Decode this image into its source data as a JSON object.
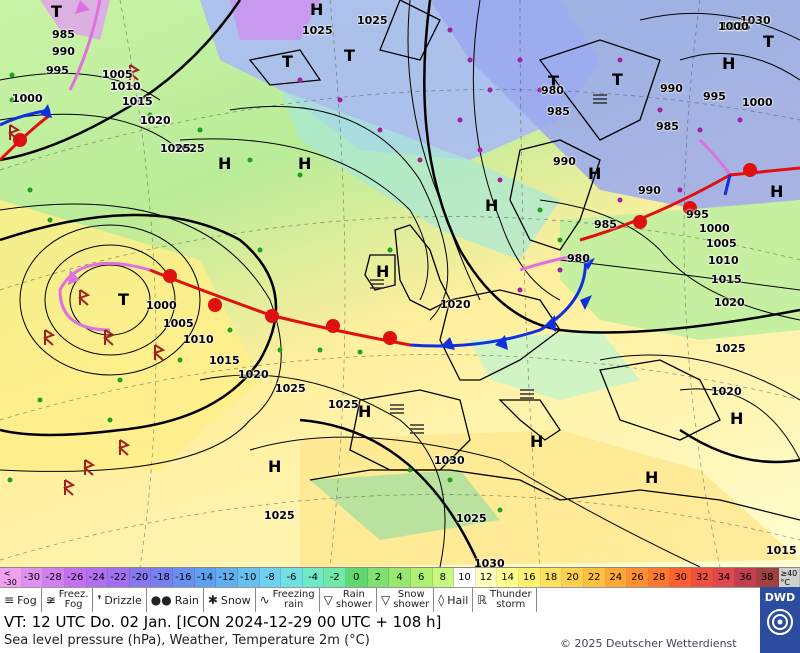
{
  "map": {
    "highs": [
      "H",
      "H",
      "H",
      "H",
      "H",
      "H",
      "H",
      "H",
      "H",
      "H",
      "H",
      "H",
      "H"
    ],
    "lows": [
      "T",
      "T",
      "T",
      "T",
      "T",
      "T",
      "T"
    ],
    "pressure_labels": [
      "985",
      "990",
      "995",
      "1000",
      "1005",
      "1010",
      "1015",
      "1020",
      "1025",
      "1025",
      "1025",
      "1020",
      "1025",
      "1000",
      "1005",
      "1010",
      "1015",
      "1020",
      "1025",
      "1030",
      "1025",
      "1030",
      "1025",
      "1020",
      "1015",
      "980",
      "985",
      "990",
      "995",
      "1000",
      "1005",
      "1010",
      "1015",
      "1020",
      "1025",
      "1030",
      "1025",
      "990",
      "995",
      "1000",
      "985",
      "990",
      "1000",
      "1025",
      "1020",
      "1015",
      "1025",
      "1000",
      "1005",
      "1010",
      "1015",
      "1020",
      "985",
      "980"
    ],
    "colors": {
      "front_cold": "#1030e0",
      "front_warm": "#e01010",
      "occlusion": "#e070e0",
      "rain": "#20a020",
      "snow": "#a020a0"
    }
  },
  "scale": {
    "labels": [
      "<\n-30",
      "-30",
      "-28",
      "-26",
      "-24",
      "-22",
      "-20",
      "-18",
      "-16",
      "-14",
      "-12",
      "-10",
      "-8",
      "-6",
      "-4",
      "-2",
      "0",
      "2",
      "4",
      "6",
      "8",
      "10",
      "12",
      "14",
      "16",
      "18",
      "20",
      "22",
      "24",
      "26",
      "28",
      "30",
      "32",
      "34",
      "36",
      "38",
      "≥40\n°C"
    ],
    "colors": [
      "#f0a0f0",
      "#e090f0",
      "#d080f0",
      "#c070f0",
      "#b070f0",
      "#a070f0",
      "#8878f0",
      "#7880f0",
      "#6890f0",
      "#60a0f0",
      "#60b0f0",
      "#68c0f0",
      "#70d0f0",
      "#70e0e0",
      "#70e8c8",
      "#70e8a8",
      "#60d870",
      "#80e070",
      "#98e870",
      "#b0f070",
      "#c8f880",
      "#ffffff",
      "#ffffc0",
      "#ffff90",
      "#fff070",
      "#ffe060",
      "#ffd050",
      "#ffc040",
      "#ffa838",
      "#ff9030",
      "#ff7830",
      "#ff6030",
      "#f05040",
      "#e04850",
      "#c04050",
      "#a04040",
      "#d0d0d0"
    ]
  },
  "legend": [
    {
      "icon": "fog-icon",
      "symbol": "≡",
      "label": "Fog"
    },
    {
      "icon": "freezing-fog-icon",
      "symbol": "≆",
      "label": "Freez.\nFog"
    },
    {
      "icon": "drizzle-icon",
      "symbol": "❜",
      "label": "Drizzle"
    },
    {
      "icon": "rain-icon",
      "symbol": "●●",
      "label": "Rain"
    },
    {
      "icon": "snow-icon",
      "symbol": "✱",
      "label": "Snow"
    },
    {
      "icon": "freezing-rain-icon",
      "symbol": "∿",
      "label": "Freezing\nrain"
    },
    {
      "icon": "rain-shower-icon",
      "symbol": "▽",
      "label": "Rain\nshower"
    },
    {
      "icon": "snow-shower-icon",
      "symbol": "▽",
      "label": "Snow\nshower"
    },
    {
      "icon": "hail-icon",
      "symbol": "◊",
      "label": "Hail"
    },
    {
      "icon": "thunderstorm-icon",
      "symbol": "ℝ",
      "label": "Thunder\nstorm"
    }
  ],
  "info": {
    "vt": "VT: 12 UTC Do.   02 Jan. [ICON 2024-12-29   00 UTC + 108 h]",
    "description": "Sea level pressure (hPa), Weather, Temperature 2m (°C)",
    "copyright": "© 2025 Deutscher Wetterdienst",
    "logo": "DWD"
  }
}
